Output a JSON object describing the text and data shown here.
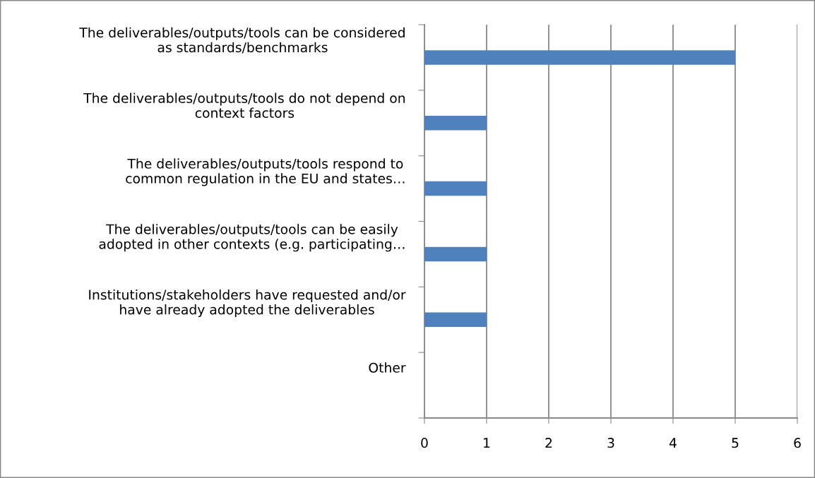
{
  "chart_data": {
    "type": "bar",
    "orientation": "horizontal",
    "categories": [
      "The deliverables/outputs/tools can be considered\nas standards/benchmarks",
      "The deliverables/outputs/tools do not depend on\ncontext factors",
      "The deliverables/outputs/tools respond to\ncommon regulation in the EU and states…",
      "The deliverables/outputs/tools can be easily\nadopted in other contexts (e.g. participating…",
      "Institutions/stakeholders have requested and/or\nhave already adopted the deliverables",
      "Other"
    ],
    "values": [
      5,
      1,
      1,
      1,
      1,
      0
    ],
    "color": "#4f81bd",
    "xlim": [
      0,
      6
    ],
    "xticks": [
      0,
      1,
      2,
      3,
      4,
      5,
      6
    ],
    "grid": "x",
    "legend": false
  }
}
